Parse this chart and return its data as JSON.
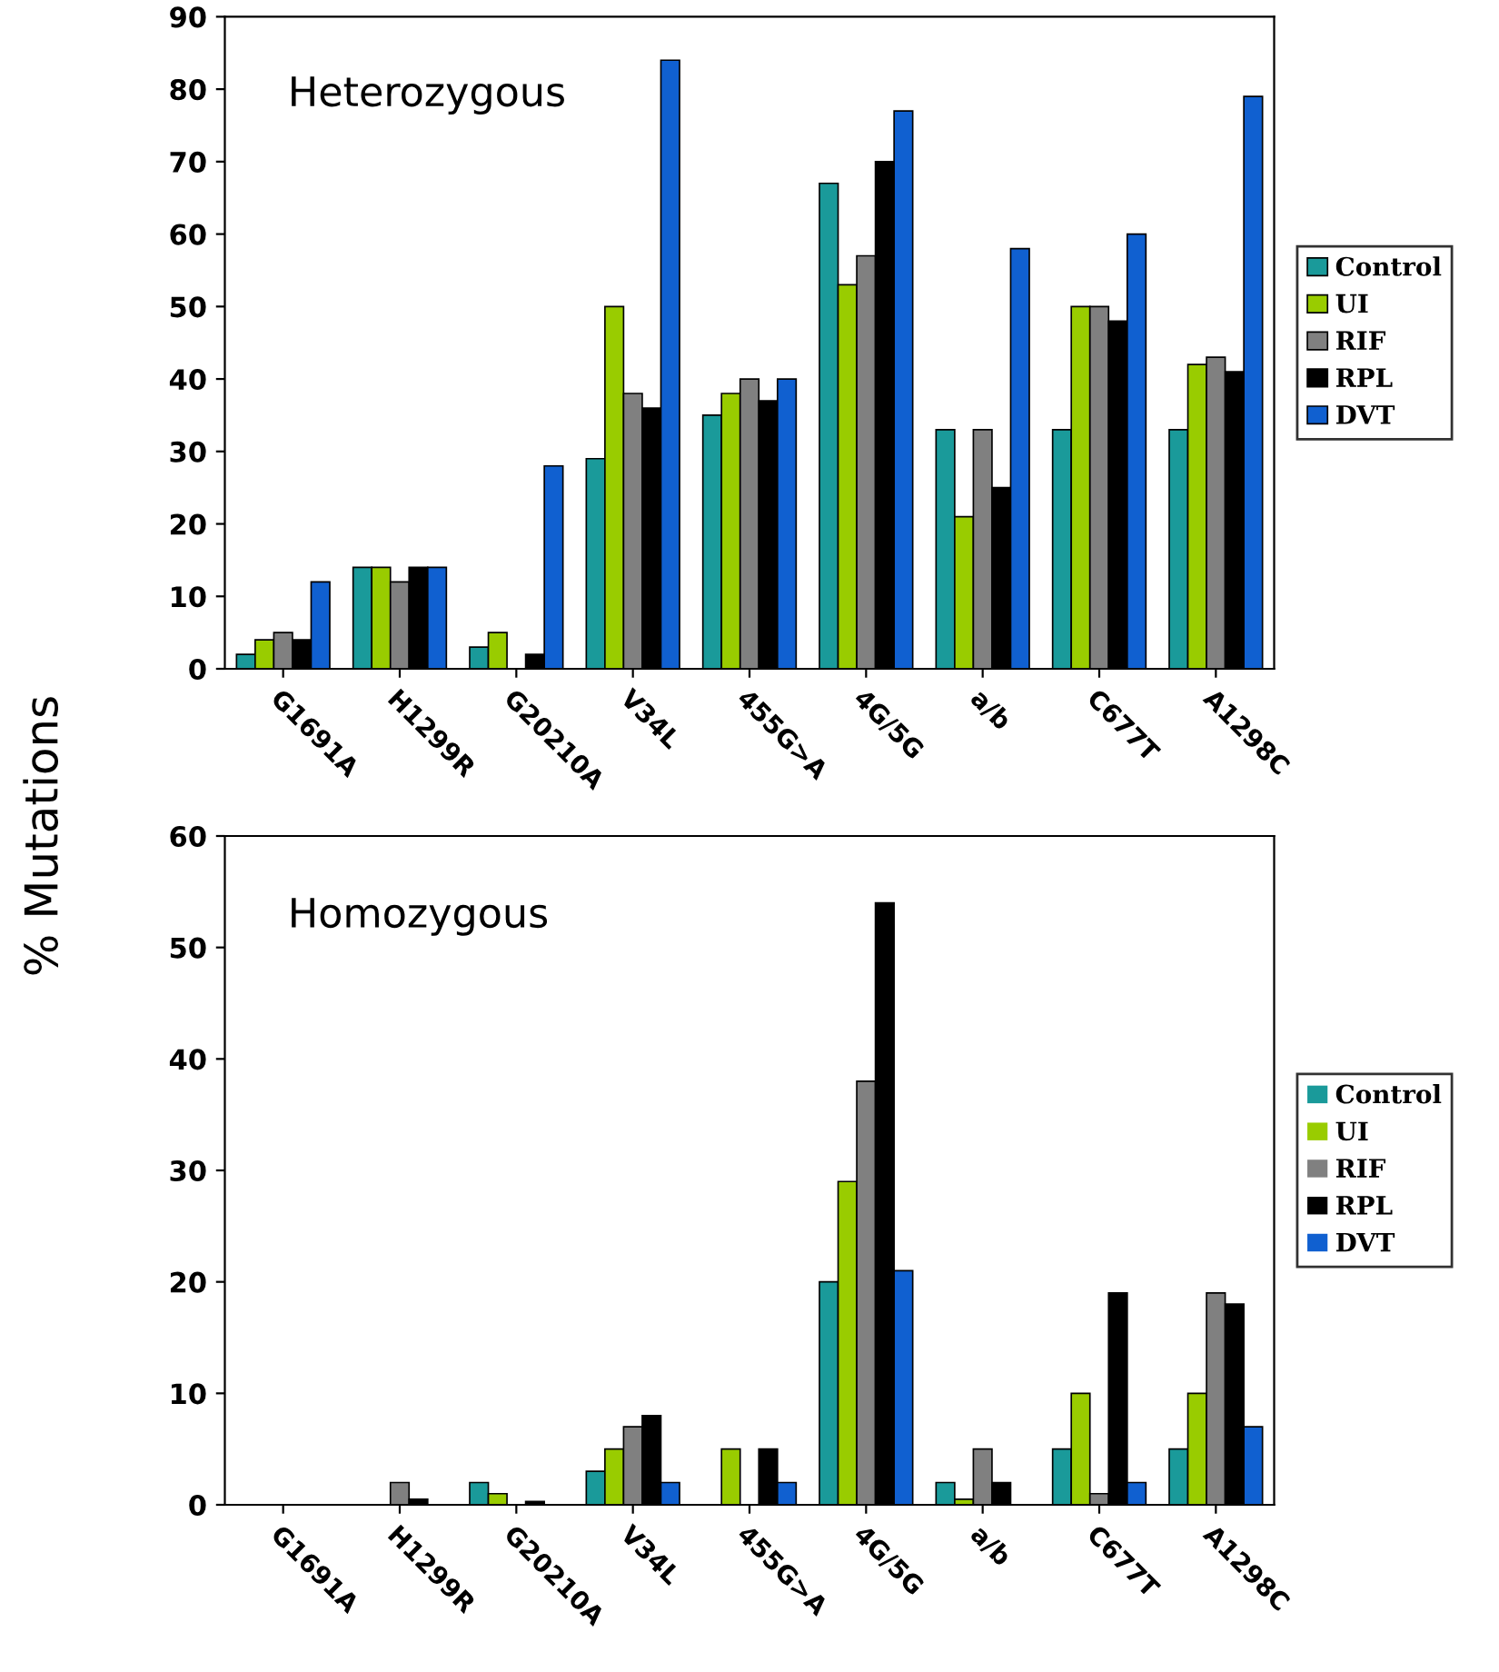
{
  "chart_data": [
    {
      "type": "bar",
      "title": "Heterozygous",
      "ylabel": "% Mutations",
      "categories": [
        "G1691A",
        "H1299R",
        "G20210A",
        "V34L",
        "455G>A",
        "4G/5G",
        "a/b",
        "C677T",
        "A1298C"
      ],
      "series": [
        {
          "name": "Control",
          "color": "#1a9a9a",
          "values": [
            2,
            14,
            3,
            29,
            35,
            67,
            33,
            33,
            33
          ]
        },
        {
          "name": "UI",
          "color": "#99cc00",
          "values": [
            4,
            14,
            5,
            50,
            38,
            53,
            21,
            50,
            42
          ]
        },
        {
          "name": "RIF",
          "color": "#808080",
          "values": [
            5,
            12,
            0,
            38,
            40,
            57,
            33,
            50,
            43
          ]
        },
        {
          "name": "RPL",
          "color": "#000000",
          "values": [
            4,
            14,
            2,
            36,
            37,
            70,
            25,
            48,
            41
          ]
        },
        {
          "name": "DVT",
          "color": "#1060d0",
          "values": [
            12,
            14,
            28,
            84,
            40,
            77,
            58,
            60,
            79
          ]
        }
      ],
      "ylim": [
        0,
        90
      ],
      "yticks": [
        0,
        10,
        20,
        30,
        40,
        50,
        60,
        70,
        80,
        90
      ],
      "legend": "right",
      "grid": false
    },
    {
      "type": "bar",
      "title": "Homozygous",
      "categories": [
        "G1691A",
        "H1299R",
        "G20210A",
        "V34L",
        "455G>A",
        "4G/5G",
        "a/b",
        "C677T",
        "A1298C"
      ],
      "series": [
        {
          "name": "Control",
          "color": "#1a9a9a",
          "values": [
            0,
            0,
            2,
            3,
            0,
            20,
            2,
            5,
            5
          ]
        },
        {
          "name": "UI",
          "color": "#99cc00",
          "values": [
            0,
            0,
            1,
            5,
            5,
            29,
            0.5,
            10,
            10
          ]
        },
        {
          "name": "RIF",
          "color": "#808080",
          "values": [
            0,
            2,
            0,
            7,
            0,
            38,
            5,
            1,
            19
          ]
        },
        {
          "name": "RPL",
          "color": "#000000",
          "values": [
            0,
            0.5,
            0.3,
            8,
            5,
            54,
            2,
            19,
            18
          ]
        },
        {
          "name": "DVT",
          "color": "#1060d0",
          "values": [
            0,
            0,
            0,
            2,
            2,
            21,
            0,
            2,
            7
          ]
        }
      ],
      "ylim": [
        0,
        60
      ],
      "yticks": [
        0,
        10,
        20,
        30,
        40,
        50,
        60
      ],
      "legend": "right",
      "grid": false
    }
  ]
}
